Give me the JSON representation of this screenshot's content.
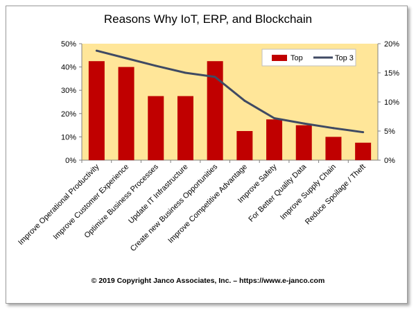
{
  "chart_data": {
    "type": "bar",
    "title": "Reasons Why IoT, ERP, and Blockchain",
    "categories": [
      "Improve Operational Productivity",
      "Improve Customer Experience",
      "Optimize Business Processes",
      "Update IT Infrastructure",
      "Create  new Business Opportunities",
      "Improve Competitive Advantage",
      "Improve Safety",
      "For Better Quality Data",
      "Improve Supply Chain",
      "Reduce Spoilage / Theft"
    ],
    "series": [
      {
        "name": "Top",
        "type": "bar",
        "axis": "left",
        "color": "#c00000",
        "values": [
          42.5,
          40,
          27.5,
          27.5,
          42.5,
          12.5,
          17.5,
          15,
          10,
          7.5
        ]
      },
      {
        "name": "Top 3",
        "type": "line",
        "axis": "right",
        "color": "#3f4a63",
        "values": [
          18.8,
          17.5,
          16.2,
          15,
          14.3,
          10.2,
          7.2,
          6.3,
          5.5,
          4.8
        ]
      }
    ],
    "y_left": {
      "ylim": [
        0,
        50
      ],
      "ticks": [
        "0%",
        "10%",
        "20%",
        "30%",
        "40%",
        "50%"
      ]
    },
    "y_right": {
      "ylim": [
        0,
        20
      ],
      "ticks": [
        "0%",
        "5%",
        "10%",
        "15%",
        "20%"
      ]
    },
    "plot_background": "#ffe699",
    "legend_placement": "top-right",
    "grid": false
  },
  "footer": "© 2019 Copyright Janco Associates, Inc. – https://www.e-janco.com"
}
